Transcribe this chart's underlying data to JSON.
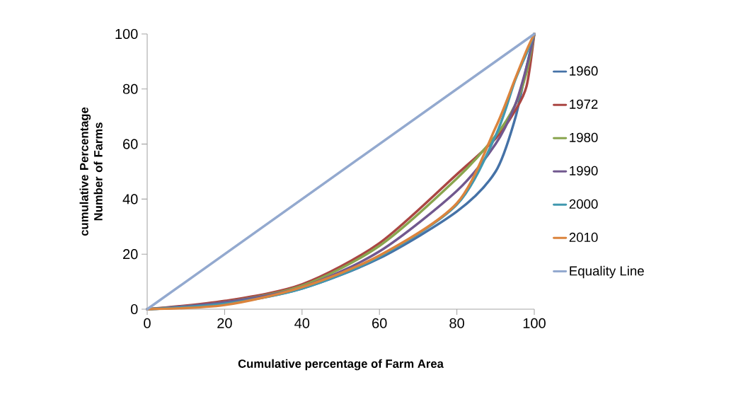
{
  "chart_data": {
    "type": "line",
    "xlabel": "Cumulative percentage of Farm Area",
    "ylabel": "cumulative Percentage Number of Farms",
    "x": [
      0,
      20,
      40,
      60,
      80,
      90,
      95,
      98,
      100
    ],
    "series": [
      {
        "name": "1960",
        "color": "#4572a7",
        "values": [
          0,
          2,
          7.5,
          18.5,
          35.5,
          50,
          69,
          88,
          100
        ]
      },
      {
        "name": "1972",
        "color": "#aa4643",
        "values": [
          0,
          3,
          9,
          24,
          49,
          62,
          72,
          81,
          100
        ]
      },
      {
        "name": "1980",
        "color": "#89a54e",
        "values": [
          0,
          2.5,
          8.5,
          23,
          47.5,
          63,
          74,
          86,
          100
        ]
      },
      {
        "name": "1990",
        "color": "#71588f",
        "values": [
          0,
          2.5,
          8,
          21,
          43,
          60,
          74,
          88,
          100
        ]
      },
      {
        "name": "2000",
        "color": "#4198af",
        "values": [
          0,
          2,
          7.5,
          19,
          38,
          63,
          83,
          93,
          100
        ]
      },
      {
        "name": "2010",
        "color": "#db843d",
        "values": [
          0,
          1.5,
          8,
          19.5,
          38.5,
          66,
          83.5,
          94,
          100
        ]
      },
      {
        "name": "Equality Line",
        "color": "#93a9cf",
        "x": [
          0,
          100
        ],
        "values": [
          0,
          100
        ]
      }
    ],
    "xlim": [
      0,
      100
    ],
    "ylim": [
      0,
      100
    ],
    "xticks": [
      0,
      20,
      40,
      60,
      80,
      100
    ],
    "yticks": [
      0,
      20,
      40,
      60,
      80,
      100
    ],
    "grid": false,
    "legend": "right",
    "marker": "none",
    "line_style": "solid"
  }
}
